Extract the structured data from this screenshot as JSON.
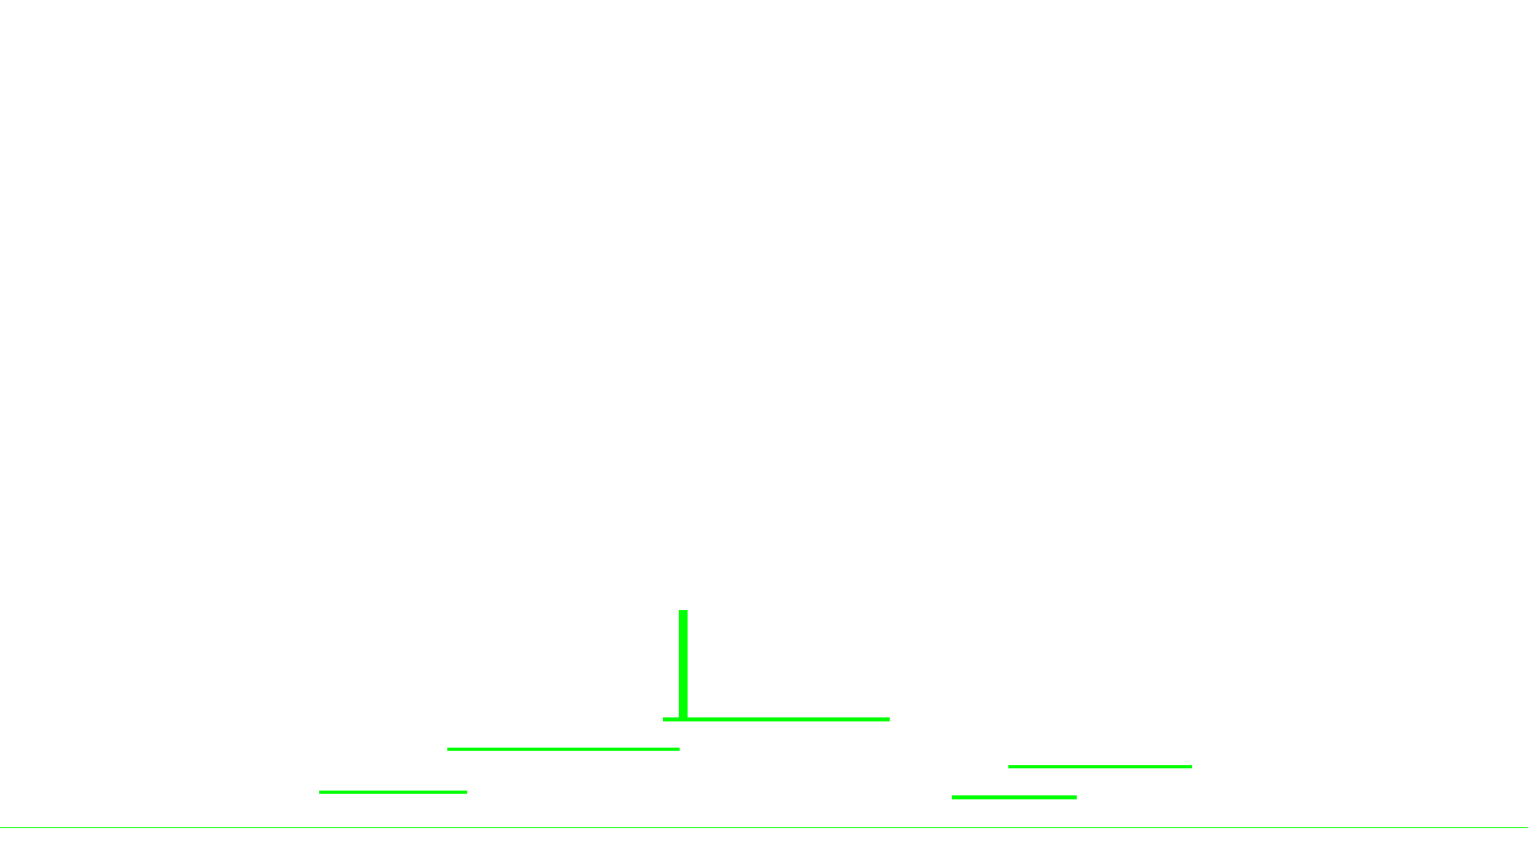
{
  "game": {
    "colors": {
      "background": "#ffffff",
      "foreground": "#00ff00"
    },
    "entities": [
      "player-pole",
      "platform-1",
      "platform-2",
      "platform-3",
      "platform-4",
      "platform-5",
      "ground-line"
    ]
  }
}
